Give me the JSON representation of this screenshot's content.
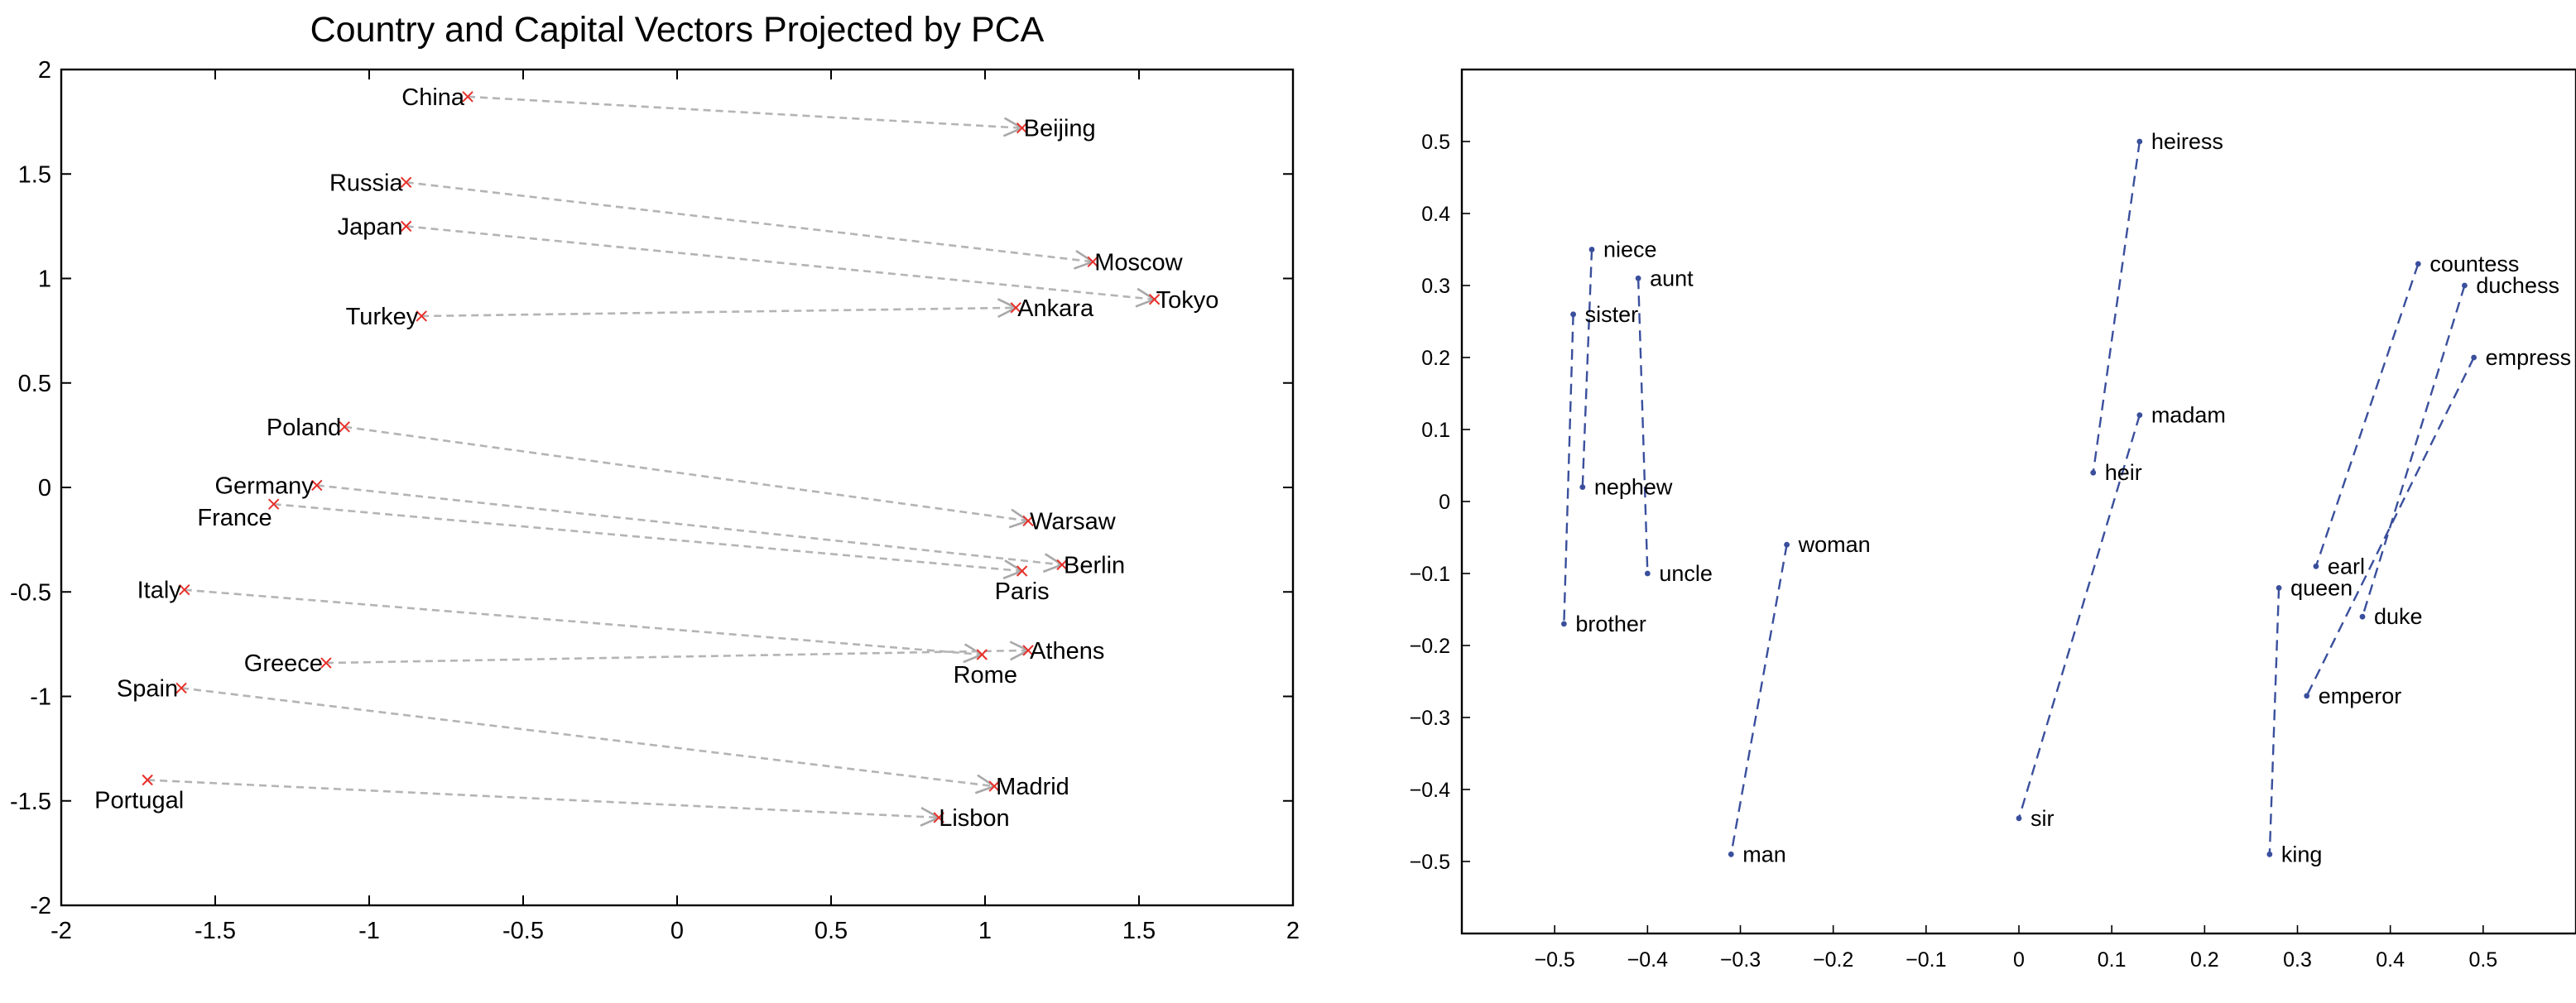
{
  "chart_data": [
    {
      "type": "scatter",
      "title": "Country and Capital Vectors Projected by PCA",
      "xlim": [
        -2,
        2
      ],
      "ylim": [
        -2,
        2
      ],
      "x_ticks": [
        -2,
        -1.5,
        -1,
        -0.5,
        0,
        0.5,
        1,
        1.5,
        2
      ],
      "y_ticks": [
        -2,
        -1.5,
        -1,
        -0.5,
        0,
        0.5,
        1,
        1.5,
        2
      ],
      "x_tick_labels": [
        "-2",
        "-1.5",
        "-1",
        "-0.5",
        "0",
        "0.5",
        "1",
        "1.5",
        "2"
      ],
      "y_tick_labels": [
        "-2",
        "-1.5",
        "-1",
        "-0.5",
        "0",
        "0.5",
        "1",
        "1.5",
        "2"
      ],
      "marker_color": "#e8302a",
      "arrow_color": "#b4b4b4",
      "pairs": [
        {
          "country": "China",
          "cx": -0.68,
          "cy": 1.87,
          "capital": "Beijing",
          "kx": 1.12,
          "ky": 1.72
        },
        {
          "country": "Russia",
          "cx": -0.88,
          "cy": 1.46,
          "capital": "Moscow",
          "kx": 1.35,
          "ky": 1.08
        },
        {
          "country": "Japan",
          "cx": -0.88,
          "cy": 1.25,
          "capital": "Tokyo",
          "kx": 1.55,
          "ky": 0.9
        },
        {
          "country": "Turkey",
          "cx": -0.83,
          "cy": 0.82,
          "capital": "Ankara",
          "kx": 1.1,
          "ky": 0.86
        },
        {
          "country": "Poland",
          "cx": -1.08,
          "cy": 0.29,
          "capital": "Warsaw",
          "kx": 1.14,
          "ky": -0.16
        },
        {
          "country": "Germany",
          "cx": -1.17,
          "cy": 0.01,
          "capital": "Berlin",
          "kx": 1.25,
          "ky": -0.37
        },
        {
          "country": "France",
          "cx": -1.31,
          "cy": -0.08,
          "capital": "Paris",
          "kx": 1.12,
          "ky": -0.4
        },
        {
          "country": "Italy",
          "cx": -1.6,
          "cy": -0.49,
          "capital": "Rome",
          "kx": 0.99,
          "ky": -0.8
        },
        {
          "country": "Greece",
          "cx": -1.14,
          "cy": -0.84,
          "capital": "Athens",
          "kx": 1.14,
          "ky": -0.78
        },
        {
          "country": "Spain",
          "cx": -1.61,
          "cy": -0.96,
          "capital": "Madrid",
          "kx": 1.03,
          "ky": -1.43
        },
        {
          "country": "Portugal",
          "cx": -1.72,
          "cy": -1.4,
          "capital": "Lisbon",
          "kx": 0.85,
          "ky": -1.58
        }
      ]
    },
    {
      "type": "scatter",
      "xlim": [
        -0.6,
        0.6
      ],
      "ylim": [
        -0.6,
        0.6
      ],
      "x_ticks": [
        -0.5,
        -0.4,
        -0.3,
        -0.2,
        -0.1,
        0,
        0.1,
        0.2,
        0.3,
        0.4,
        0.5
      ],
      "y_ticks": [
        -0.5,
        -0.4,
        -0.3,
        -0.2,
        -0.1,
        0,
        0.1,
        0.2,
        0.3,
        0.4,
        0.5
      ],
      "x_tick_labels": [
        "−0.5",
        "−0.4",
        "−0.3",
        "−0.2",
        "−0.1",
        "0",
        "0.1",
        "0.2",
        "0.3",
        "0.4",
        "0.5"
      ],
      "y_tick_labels": [
        "−0.5",
        "−0.4",
        "−0.3",
        "−0.2",
        "−0.1",
        "0",
        "0.1",
        "0.2",
        "0.3",
        "0.4",
        "0.5"
      ],
      "line_color": "#3a4f9c",
      "points": [
        {
          "label": "niece",
          "x": -0.46,
          "y": 0.35
        },
        {
          "label": "aunt",
          "x": -0.41,
          "y": 0.31
        },
        {
          "label": "sister",
          "x": -0.48,
          "y": 0.26
        },
        {
          "label": "nephew",
          "x": -0.47,
          "y": 0.02
        },
        {
          "label": "uncle",
          "x": -0.4,
          "y": -0.1
        },
        {
          "label": "brother",
          "x": -0.49,
          "y": -0.17
        },
        {
          "label": "woman",
          "x": -0.25,
          "y": -0.06
        },
        {
          "label": "man",
          "x": -0.31,
          "y": -0.49
        },
        {
          "label": "heiress",
          "x": 0.13,
          "y": 0.5
        },
        {
          "label": "madam",
          "x": 0.13,
          "y": 0.12
        },
        {
          "label": "heir",
          "x": 0.08,
          "y": 0.04
        },
        {
          "label": "sir",
          "x": 0,
          "y": -0.44
        },
        {
          "label": "countess",
          "x": 0.43,
          "y": 0.33
        },
        {
          "label": "duchess",
          "x": 0.48,
          "y": 0.3
        },
        {
          "label": "empress",
          "x": 0.49,
          "y": 0.2
        },
        {
          "label": "earl",
          "x": 0.32,
          "y": -0.09
        },
        {
          "label": "queen",
          "x": 0.28,
          "y": -0.12
        },
        {
          "label": "duke",
          "x": 0.37,
          "y": -0.16
        },
        {
          "label": "emperor",
          "x": 0.31,
          "y": -0.27
        },
        {
          "label": "king",
          "x": 0.27,
          "y": -0.49
        }
      ],
      "pairs": [
        [
          "niece",
          "nephew"
        ],
        [
          "aunt",
          "uncle"
        ],
        [
          "sister",
          "brother"
        ],
        [
          "woman",
          "man"
        ],
        [
          "heiress",
          "heir"
        ],
        [
          "madam",
          "sir"
        ],
        [
          "countess",
          "earl"
        ],
        [
          "duchess",
          "duke"
        ],
        [
          "empress",
          "emperor"
        ],
        [
          "queen",
          "king"
        ]
      ]
    }
  ]
}
